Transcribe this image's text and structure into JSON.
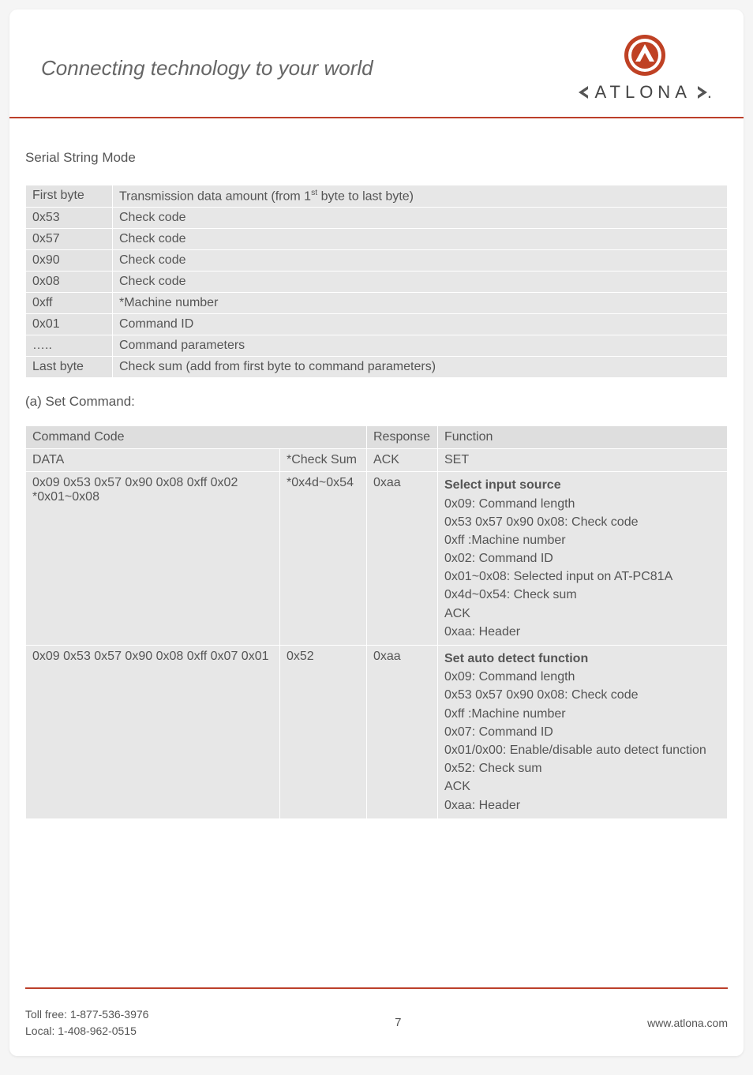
{
  "header": {
    "tagline": "Connecting technology to your world",
    "brand_word": "ATLONA",
    "logo_colors": {
      "ring_outer": "#bf4124",
      "ring_inner": "#ffffff",
      "core": "#bf4124",
      "chevron": "#555555"
    }
  },
  "section_title": "Serial String Mode",
  "format_table": [
    {
      "byte": "First byte",
      "desc_prefix": "Transmission data amount (from 1",
      "desc_sup": "st",
      "desc_suffix": " byte to last byte)"
    },
    {
      "byte": "0x53",
      "desc": "Check code"
    },
    {
      "byte": "0x57",
      "desc": "Check code"
    },
    {
      "byte": "0x90",
      "desc": "Check code"
    },
    {
      "byte": "0x08",
      "desc": "Check code"
    },
    {
      "byte": "0xff",
      "desc": "*Machine number"
    },
    {
      "byte": "0x01",
      "desc": "Command ID"
    },
    {
      "byte": "…..",
      "desc": "Command parameters"
    },
    {
      "byte": "Last byte",
      "desc": "Check sum (add from first byte to command parameters)"
    }
  ],
  "set_command_label": "(a) Set Command:",
  "cmd_headers": {
    "command_code": "Command Code",
    "response": "Response",
    "function": "Function",
    "data": "DATA",
    "check_sum": "*Check Sum",
    "ack": "ACK",
    "set": "SET"
  },
  "cmd_rows": [
    {
      "data": "0x09 0x53 0x57 0x90 0x08 0xff 0x02 *0x01~0x08",
      "check": "*0x4d~0x54",
      "resp": "0xaa",
      "fn_title": "Select input source",
      "fn_lines": [
        "0x09: Command length",
        "0x53 0x57 0x90 0x08: Check code",
        "0xff :Machine number",
        "0x02: Command ID",
        "0x01~0x08: Selected input on AT-PC81A",
        "0x4d~0x54: Check sum",
        "ACK",
        "0xaa: Header"
      ]
    },
    {
      "data": "0x09 0x53 0x57 0x90 0x08 0xff 0x07 0x01",
      "check": "0x52",
      "resp": "0xaa",
      "fn_title": "Set auto detect function",
      "fn_lines": [
        "0x09: Command length",
        "0x53 0x57 0x90 0x08: Check code",
        "0xff :Machine number",
        "0x07: Command ID",
        "0x01/0x00: Enable/disable auto detect function",
        "0x52: Check sum",
        "ACK",
        "0xaa: Header"
      ]
    }
  ],
  "footer": {
    "toll_free_label": "Toll free: ",
    "toll_free": "1-877-536-3976",
    "local_label": "Local: ",
    "local": "1-408-962-0515",
    "page_number": "7",
    "website": "www.atlona.com"
  },
  "colors": {
    "page_bg": "#ffffff",
    "body_bg": "#f5f5f5",
    "rule": "#bc3f2a",
    "cell_bg": "#e7e7e7",
    "cell_bg_alt": "#e3e3e3",
    "hdr_bg": "#dedede",
    "text": "#555555",
    "tagline": "#666666"
  },
  "typography": {
    "tagline_pt": 26,
    "section_title_pt": 17,
    "table_pt": 16,
    "footer_pt": 14
  }
}
